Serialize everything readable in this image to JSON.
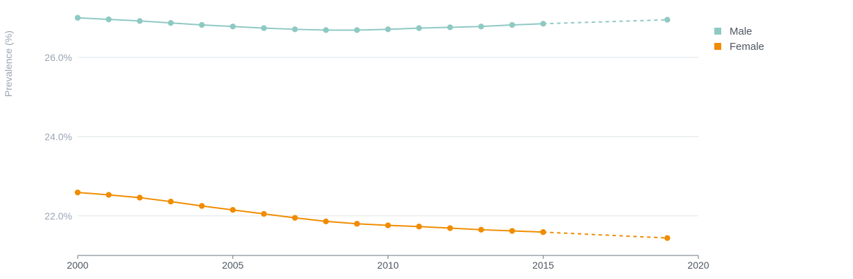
{
  "chart_data": {
    "type": "line",
    "xlabel": "",
    "ylabel": "Prevalence (%)",
    "xlim": [
      2000,
      2020
    ],
    "ylim": [
      21.0,
      27.1
    ],
    "x_ticks": [
      2000,
      2005,
      2010,
      2015,
      2020
    ],
    "y_ticks": [
      22.0,
      24.0,
      26.0
    ],
    "y_tick_labels": [
      "22.0%",
      "24.0%",
      "26.0%"
    ],
    "x_tick_labels": [
      "2000",
      "2005",
      "2010",
      "2015",
      "2020"
    ],
    "grid": "horizontal",
    "legend": "right",
    "series": [
      {
        "name": "Male",
        "color": "#8ec9c4",
        "x": [
          2000,
          2001,
          2002,
          2003,
          2004,
          2005,
          2006,
          2007,
          2008,
          2009,
          2010,
          2011,
          2012,
          2013,
          2014,
          2015,
          2019
        ],
        "values": [
          27.0,
          26.96,
          26.92,
          26.87,
          26.82,
          26.78,
          26.74,
          26.71,
          26.69,
          26.69,
          26.71,
          26.74,
          26.76,
          26.78,
          26.82,
          26.85,
          26.95
        ],
        "projected_from_index": 15
      },
      {
        "name": "Female",
        "color": "#f08c00",
        "x": [
          2000,
          2001,
          2002,
          2003,
          2004,
          2005,
          2006,
          2007,
          2008,
          2009,
          2010,
          2011,
          2012,
          2013,
          2014,
          2015,
          2019
        ],
        "values": [
          22.59,
          22.53,
          22.46,
          22.36,
          22.25,
          22.15,
          22.05,
          21.95,
          21.86,
          21.8,
          21.76,
          21.73,
          21.69,
          21.65,
          21.62,
          21.59,
          21.44
        ],
        "projected_from_index": 15
      }
    ]
  }
}
